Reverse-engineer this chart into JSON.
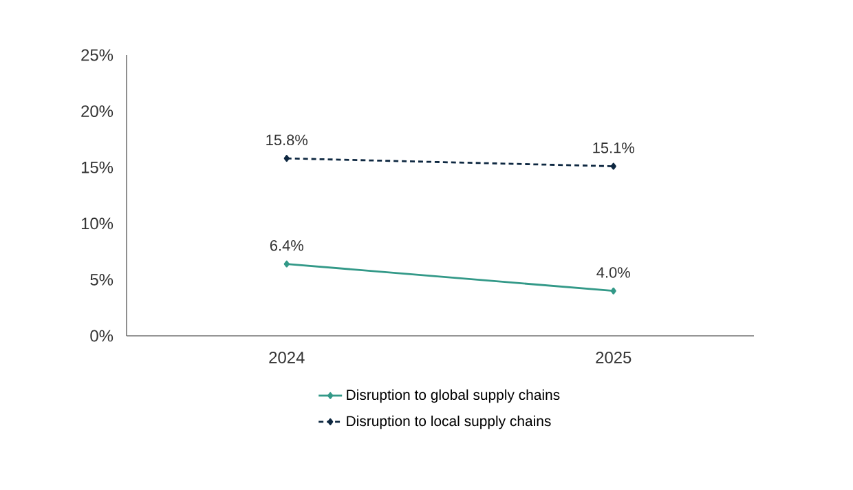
{
  "chart_data": {
    "type": "line",
    "categories": [
      "2024",
      "2025"
    ],
    "series": [
      {
        "name": "Disruption to global supply chains",
        "color": "#339988",
        "values": [
          6.4,
          4.0
        ],
        "value_labels": [
          "6.4%",
          "4.0%"
        ],
        "line_style": "solid"
      },
      {
        "name": "Disruption to local supply chains",
        "color": "#0e2841",
        "values": [
          15.8,
          15.1
        ],
        "value_labels": [
          "15.8%",
          "15.1%"
        ],
        "line_style": "dashed"
      }
    ],
    "ylim": [
      0,
      25
    ],
    "yticks": [
      {
        "value": 0,
        "label": "0%"
      },
      {
        "value": 5,
        "label": "5%"
      },
      {
        "value": 10,
        "label": "10%"
      },
      {
        "value": 15,
        "label": "15%"
      },
      {
        "value": 20,
        "label": "20%"
      },
      {
        "value": 25,
        "label": "25%"
      }
    ],
    "marker": "diamond",
    "grid": false,
    "legend": "bottom"
  }
}
